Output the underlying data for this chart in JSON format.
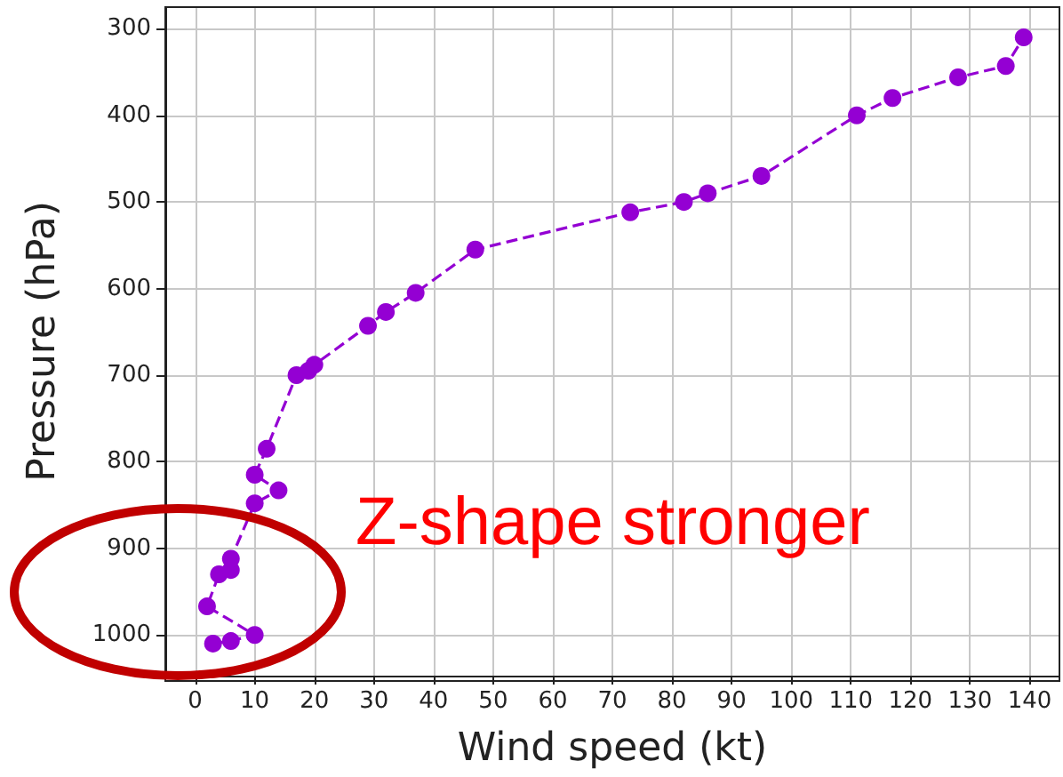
{
  "chart_data": {
    "type": "line",
    "xlabel": "Wind speed (kt)",
    "ylabel": "Pressure (hPa)",
    "x": [
      3,
      6,
      10,
      2,
      4,
      6,
      6,
      10,
      14,
      10,
      12,
      17,
      19,
      20,
      29,
      32,
      37,
      47,
      73,
      82,
      86,
      95,
      111,
      117,
      128,
      136,
      139
    ],
    "series": [
      {
        "color": "#9400d3",
        "values": [
          1010,
          1007,
          1000,
          967,
          930,
          925,
          912,
          848,
          833,
          815,
          785,
          700,
          695,
          688,
          643,
          627,
          605,
          555,
          512,
          500,
          490,
          470,
          400,
          380,
          356,
          343,
          310
        ]
      }
    ],
    "xlim": [
      -5,
      145
    ],
    "xticks": [
      0,
      10,
      20,
      30,
      40,
      50,
      60,
      70,
      80,
      90,
      100,
      110,
      120,
      130,
      140
    ],
    "ylim": [
      1047,
      275
    ],
    "yticks": [
      300,
      400,
      500,
      600,
      700,
      800,
      900,
      1000
    ],
    "grid": true,
    "marker": "circle",
    "line_style": "dashed",
    "annotations": [
      "Z-shape stronger"
    ]
  }
}
